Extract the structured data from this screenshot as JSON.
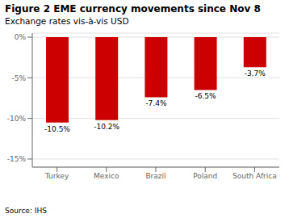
{
  "chart_data": {
    "type": "bar",
    "title": "Figure 2 EME currency movements since Nov 8",
    "subtitle": "Exchange rates vis-à-vis USD",
    "source": "Source: IHS",
    "categories": [
      "Turkey",
      "Mexico",
      "Brazil",
      "Poland",
      "South Africa"
    ],
    "values": [
      -10.5,
      -10.2,
      -7.4,
      -6.5,
      -3.7
    ],
    "value_labels": [
      "-10.5%",
      "-10.2%",
      "-7.4%",
      "-6.5%",
      "-3.7%"
    ],
    "data_labels": true,
    "color": "#cc0000",
    "ylim": [
      -16,
      0.5
    ],
    "yticks": [
      {
        "value": 0,
        "label": "0%"
      },
      {
        "value": -5,
        "label": "-5%"
      },
      {
        "value": -10,
        "label": "-10%"
      },
      {
        "value": -15,
        "label": "-15%"
      }
    ],
    "grid": true
  }
}
